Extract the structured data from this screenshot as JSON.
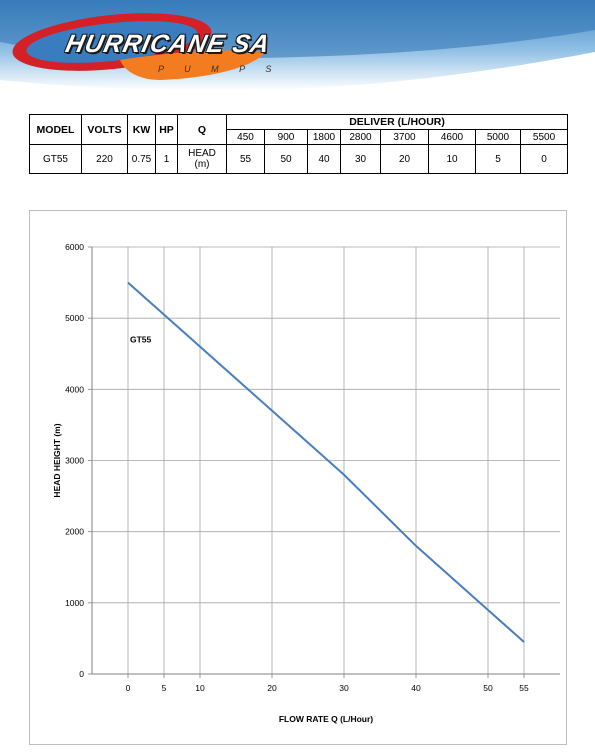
{
  "brand": {
    "name": "HURRICANE SA",
    "sub": "P U M P S"
  },
  "table": {
    "headers": {
      "model": "MODEL",
      "volts": "VOLTS",
      "kw": "KW",
      "hp": "HP",
      "q": "Q",
      "deliver": "DELIVER (L/HOUR)"
    },
    "flows": [
      "450",
      "900",
      "1800",
      "2800",
      "3700",
      "4600",
      "5000",
      "5500"
    ],
    "row": {
      "model": "GT55",
      "volts": "220",
      "kw": "0.75",
      "hp": "1",
      "q_line1": "HEAD",
      "q_line2": "(m)",
      "heads": [
        "55",
        "50",
        "40",
        "30",
        "20",
        "10",
        "5",
        "0"
      ]
    }
  },
  "colors": {
    "line": "#4a7ebb",
    "grid": "#a6a6a6",
    "logo_red": "#d42027",
    "logo_orange": "#f47c20",
    "banner_blue": "#4a90c8"
  },
  "chart_data": {
    "type": "line",
    "xlabel": "FLOW RATE Q (L/Hour)",
    "ylabel": "HEAD HEIGHT (m)",
    "ylim": [
      0,
      6000
    ],
    "yticks": [
      0,
      1000,
      2000,
      3000,
      4000,
      5000,
      6000
    ],
    "xlim": [
      -5,
      60
    ],
    "xticks": [
      0,
      5,
      10,
      20,
      30,
      40,
      50,
      55
    ],
    "grid": true,
    "annotation": "GT55",
    "series": [
      {
        "name": "GT55",
        "x": [
          0,
          10,
          20,
          30,
          40,
          50,
          55
        ],
        "y": [
          5500,
          4600,
          3700,
          2800,
          1800,
          900,
          450
        ]
      }
    ]
  }
}
